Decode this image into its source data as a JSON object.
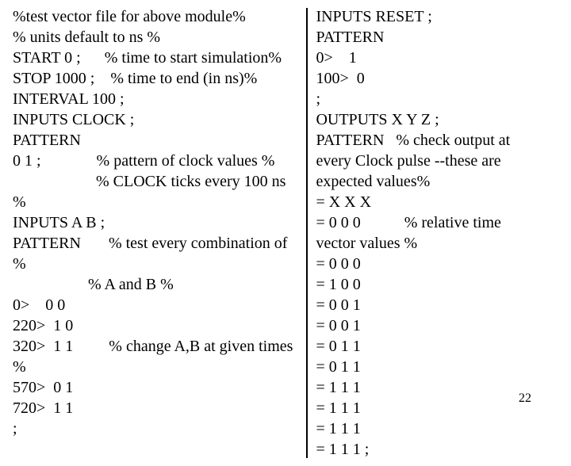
{
  "left": {
    "lines": [
      "%test vector file for above module%",
      "% units default to ns %",
      "START 0 ;      % time to start simulation%",
      "STOP 1000 ;    % time to end (in ns)%",
      "INTERVAL 100 ;",
      "INPUTS CLOCK ;",
      "PATTERN",
      "0 1 ;              % pattern of clock values %",
      "                     % CLOCK ticks every 100 ns",
      "%",
      "INPUTS A B ;",
      "PATTERN       % test every combination of",
      "%",
      "                   % A and B %",
      "0>    0 0",
      "220>  1 0",
      "320>  1 1         % change A,B at given times",
      "%",
      "570>  0 1",
      "720>  1 1",
      ";"
    ]
  },
  "right": {
    "lines": [
      "INPUTS RESET ;",
      "PATTERN",
      "0>    1",
      "100>  0",
      ";",
      "OUTPUTS X Y Z ;",
      "PATTERN   % check output at",
      "every Clock pulse --these are",
      "expected values%",
      "= X X X",
      "= 0 0 0           % relative time",
      "vector values %",
      "= 0 0 0",
      "= 1 0 0",
      "= 0 0 1",
      "= 0 0 1",
      "= 0 1 1",
      "= 0 1 1",
      "= 1 1 1",
      "= 1 1 1",
      "= 1 1 1",
      "= 1 1 1 ;"
    ]
  },
  "page_number": "22",
  "fonts": {
    "family": "Times New Roman",
    "size_pt": 15
  },
  "colors": {
    "text": "#000000",
    "background": "#ffffff",
    "divider": "#000000"
  }
}
